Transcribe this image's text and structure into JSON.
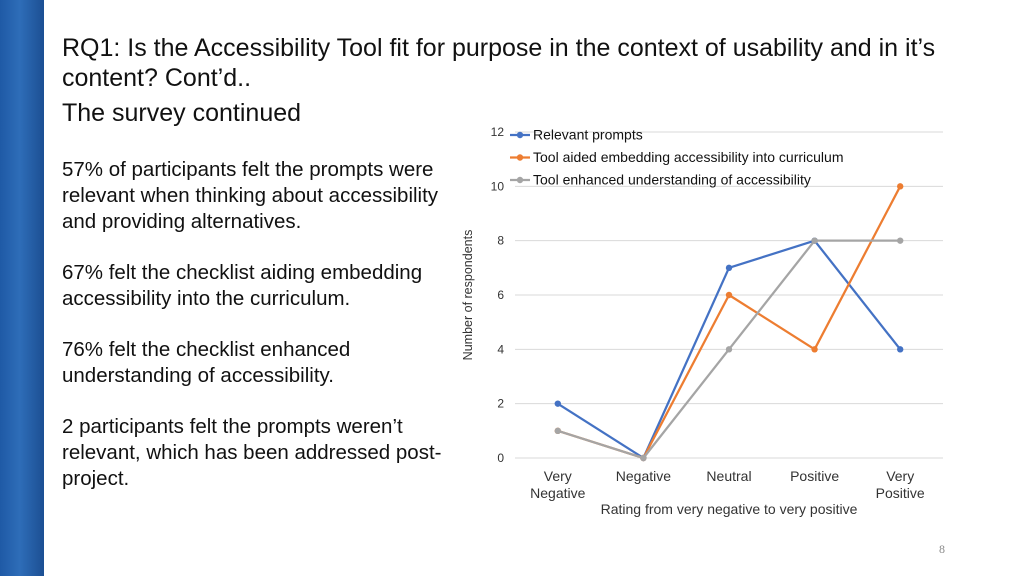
{
  "slide": {
    "title": "RQ1: Is the Accessibility Tool fit for purpose in the context of usability and in it’s content? Cont’d..",
    "subtitle": "The survey continued",
    "bullets": [
      "57% of participants felt the prompts were relevant when thinking about accessibility and providing alternatives.",
      "67% felt the checklist aiding embedding accessibility into the curriculum.",
      "76% felt the checklist enhanced understanding of accessibility.",
      "2 participants felt the prompts weren’t relevant, which has been addressed post-project."
    ],
    "page_number": "8",
    "accent_color": "#2563ad"
  },
  "chart_data": {
    "type": "line",
    "categories": [
      [
        "Very",
        "Negative"
      ],
      [
        "Negative"
      ],
      [
        "Neutral"
      ],
      [
        "Positive"
      ],
      [
        "Very",
        "Positive"
      ]
    ],
    "series": [
      {
        "name": "Relevant prompts",
        "color": "#4472c4",
        "values": [
          2,
          0,
          7,
          8,
          4
        ]
      },
      {
        "name": "Tool aided embedding accessibility into curriculum",
        "color": "#ed7d31",
        "values": [
          1,
          0,
          6,
          4,
          10
        ]
      },
      {
        "name": "Tool enhanced understanding of accessibility",
        "color": "#a5a5a5",
        "values": [
          1,
          0,
          4,
          8,
          8
        ]
      }
    ],
    "xlabel": "Rating from very negative to very positive",
    "ylabel": "Number of respondents",
    "ylim": [
      0,
      12
    ],
    "yticks": [
      0,
      2,
      4,
      6,
      8,
      10,
      12
    ],
    "grid": true,
    "legend_position": "top-left"
  }
}
